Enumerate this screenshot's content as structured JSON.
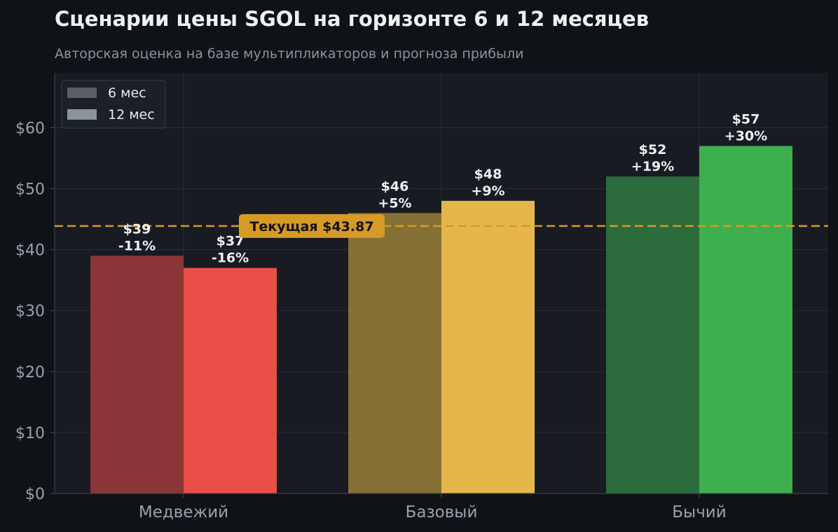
{
  "header": {
    "title": "Сценарии цены SGOL на горизонте 6 и 12 месяцев",
    "subtitle": "Авторская оценка на базе мультипликаторов и прогноза прибыли"
  },
  "chart_data": {
    "type": "bar",
    "title": "Сценарии цены SGOL на горизонте 6 и 12 месяцев",
    "subtitle": "Авторская оценка на базе мультипликаторов и прогноза прибыли",
    "xlabel": "",
    "ylabel": "",
    "categories": [
      "Медвежий",
      "Базовый",
      "Бычий"
    ],
    "series": [
      {
        "name": "6 мес",
        "values": [
          39,
          46,
          52
        ],
        "labels": [
          "$39\n-11%",
          "$46\n+5%",
          "$52\n+19%"
        ],
        "colors": [
          "#8a3538",
          "#857035",
          "#2b6b3c"
        ]
      },
      {
        "name": "12 мес",
        "values": [
          37,
          48,
          57
        ],
        "labels": [
          "$37\n-16%",
          "$48\n+9%",
          "$57\n+30%"
        ],
        "colors": [
          "#ea4f47",
          "#e5b74b",
          "#3daf4c"
        ]
      }
    ],
    "ylim": [
      0,
      69
    ],
    "yticks": [
      0,
      10,
      20,
      30,
      40,
      50,
      60
    ],
    "ytick_labels": [
      "$0",
      "$10",
      "$20",
      "$30",
      "$40",
      "$50",
      "$60"
    ],
    "grid": true,
    "legend": {
      "position": "top-left",
      "entries": [
        "6 мес",
        "12 мес"
      ],
      "colors": [
        "#5a5e67",
        "#8c939b"
      ]
    },
    "reference_line": {
      "value": 43.87,
      "label": "Текущая $43.87",
      "color": "#d69a26"
    }
  }
}
